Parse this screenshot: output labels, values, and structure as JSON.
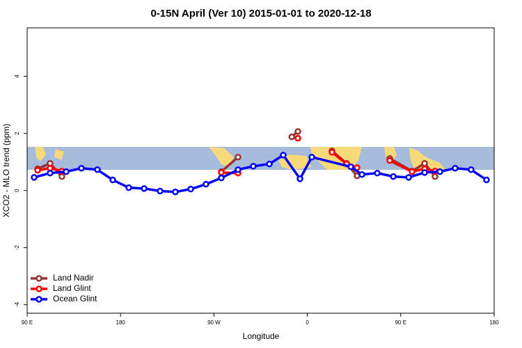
{
  "chart_data": {
    "type": "line",
    "title": "0-15N April (Ver 10)   2015-01-01 to 2020-12-18",
    "x_label": "Longitude",
    "y_label": "XCO2 - MLO trend (ppm)",
    "xlim": [
      90,
      540
    ],
    "xticks": [
      {
        "value": 90,
        "label": "90 E"
      },
      {
        "value": 180,
        "label": "180"
      },
      {
        "value": 270,
        "label": "90 W"
      },
      {
        "value": 360,
        "label": "0"
      },
      {
        "value": 450,
        "label": "90 E"
      },
      {
        "value": 540,
        "label": "180"
      }
    ],
    "ylim": [
      -4.3,
      5.7
    ],
    "yticks": [
      -4,
      -2,
      0,
      2,
      4
    ],
    "legend": "bottom-left",
    "series": [
      {
        "name": "Land Nadir",
        "color": "#993333",
        "x": [
          100.1,
          112.1,
          123.5,
          null,
          277.1,
          293.2,
          null,
          345.0,
          350.9,
          null,
          383.7,
          397.8,
          407.9,
          null,
          439.4,
          460.9,
          473.0,
          483.0
        ],
        "values": [
          0.76,
          0.95,
          0.49,
          null,
          0.66,
          1.17,
          null,
          1.88,
          2.07,
          null,
          1.39,
          0.95,
          0.51,
          null,
          1.12,
          0.68,
          0.95,
          0.49
        ]
      },
      {
        "name": "Land Glint",
        "color": "#ff0000",
        "x": [
          100.1,
          112.1,
          123.5,
          null,
          277.1,
          293.2,
          null,
          350.9,
          null,
          383.7,
          397.8,
          407.9,
          null,
          439.4,
          460.9,
          473.0,
          483.0
        ],
        "values": [
          0.71,
          0.78,
          0.68,
          null,
          0.63,
          0.61,
          null,
          1.83,
          null,
          1.34,
          0.93,
          0.8,
          null,
          1.05,
          0.66,
          0.76,
          0.68
        ]
      },
      {
        "name": "Ocean Glint",
        "color": "#0000ff",
        "x": [
          96.7,
          112.1,
          127.6,
          142.3,
          157.7,
          172.5,
          187.9,
          202.7,
          218.1,
          232.8,
          247.6,
          262.3,
          277.1,
          293.2,
          307.9,
          323.4,
          336.8,
          352.9,
          364.3,
          401.9,
          412.6,
          427.4,
          442.8,
          457.6,
          473.0,
          487.7,
          502.4,
          517.8,
          532.6
        ],
        "values": [
          0.46,
          0.61,
          0.66,
          0.78,
          0.73,
          0.37,
          0.1,
          0.07,
          -0.02,
          -0.05,
          0.05,
          0.22,
          0.44,
          0.73,
          0.85,
          0.93,
          1.24,
          0.41,
          1.17,
          0.83,
          0.56,
          0.61,
          0.49,
          0.46,
          0.63,
          0.66,
          0.78,
          0.73,
          0.37
        ]
      }
    ]
  }
}
